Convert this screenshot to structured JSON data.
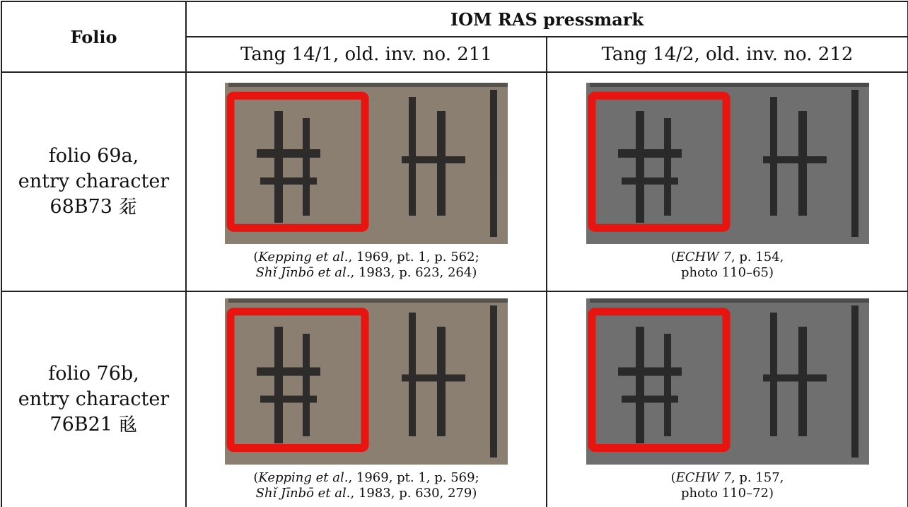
{
  "table": {
    "header": {
      "folio": "Folio",
      "pressmark": "IOM RAS pressmark",
      "columns": [
        "Tang 14/1, old. inv. no. 211",
        "Tang 14/2, old. inv. no. 212"
      ]
    },
    "rows": [
      {
        "folio": [
          "folio 69a,",
          "entry character",
          "68B73 𗳛"
        ],
        "captions": [
          [
            [
              {
                "text": "("
              },
              {
                "text": "Kepping et al.",
                "italic": true
              },
              {
                "text": ", 1969, pt. 1, p. 562;"
              }
            ],
            [
              {
                "text": "Shǐ Jīnbō et al.",
                "italic": true
              },
              {
                "text": ", 1983, p. 623, 264)"
              }
            ]
          ],
          [
            [
              {
                "text": "("
              },
              {
                "text": "ECHW 7",
                "italic": true
              },
              {
                "text": ", p. 154,"
              }
            ],
            [
              {
                "text": "photo 110–65)"
              }
            ]
          ]
        ]
      },
      {
        "folio": [
          "folio 76b,",
          "entry character",
          "76B21 𗷡"
        ],
        "captions": [
          [
            [
              {
                "text": "("
              },
              {
                "text": "Kepping et al.",
                "italic": true
              },
              {
                "text": ", 1969, pt. 1, p. 569;"
              }
            ],
            [
              {
                "text": "Shǐ Jīnbō et al.",
                "italic": true
              },
              {
                "text": ", 1983, p. 630, 279)"
              }
            ]
          ],
          [
            [
              {
                "text": "("
              },
              {
                "text": "ECHW 7",
                "italic": true
              },
              {
                "text": ", p. 157,"
              }
            ],
            [
              {
                "text": "photo 110–72)"
              }
            ]
          ]
        ]
      }
    ]
  }
}
